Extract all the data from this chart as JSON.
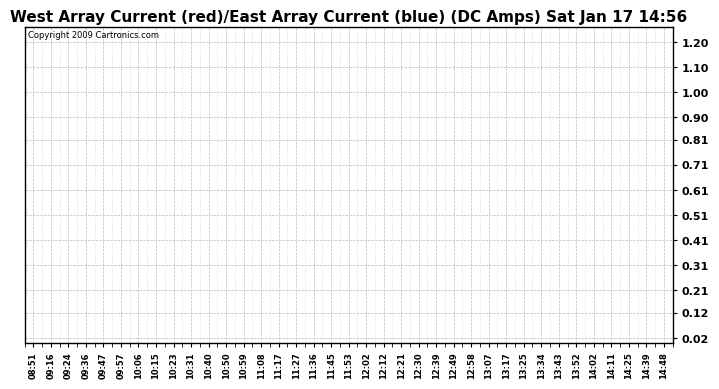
{
  "title": "West Array Current (red)/East Array Current (blue) (DC Amps) Sat Jan 17 14:56",
  "copyright_text": "Copyright 2009 Cartronics.com",
  "background_color": "#ffffff",
  "title_fontsize": 11,
  "yticks": [
    0.02,
    0.12,
    0.21,
    0.31,
    0.41,
    0.51,
    0.61,
    0.71,
    0.81,
    0.9,
    1.0,
    1.1,
    1.2
  ],
  "ylim": [
    0.0,
    1.26
  ],
  "xtick_labels": [
    "08:51",
    "09:16",
    "09:24",
    "09:36",
    "09:47",
    "09:57",
    "10:06",
    "10:15",
    "10:23",
    "10:31",
    "10:40",
    "10:50",
    "10:59",
    "11:08",
    "11:17",
    "11:27",
    "11:36",
    "11:45",
    "11:53",
    "12:02",
    "12:12",
    "12:21",
    "12:30",
    "12:39",
    "12:49",
    "12:58",
    "13:07",
    "13:17",
    "13:25",
    "13:34",
    "13:43",
    "13:52",
    "14:02",
    "14:11",
    "14:25",
    "14:39",
    "14:48"
  ],
  "grid_color": "#bbbbbb",
  "grid_linestyle": "--",
  "grid_linewidth": 0.5,
  "minor_grid_color": "#dddddd",
  "border_color": "#000000",
  "title_font": "DejaVu Sans",
  "tick_font": "DejaVu Sans",
  "copyright_fontsize": 6,
  "ytick_fontsize": 8,
  "xtick_fontsize": 6
}
